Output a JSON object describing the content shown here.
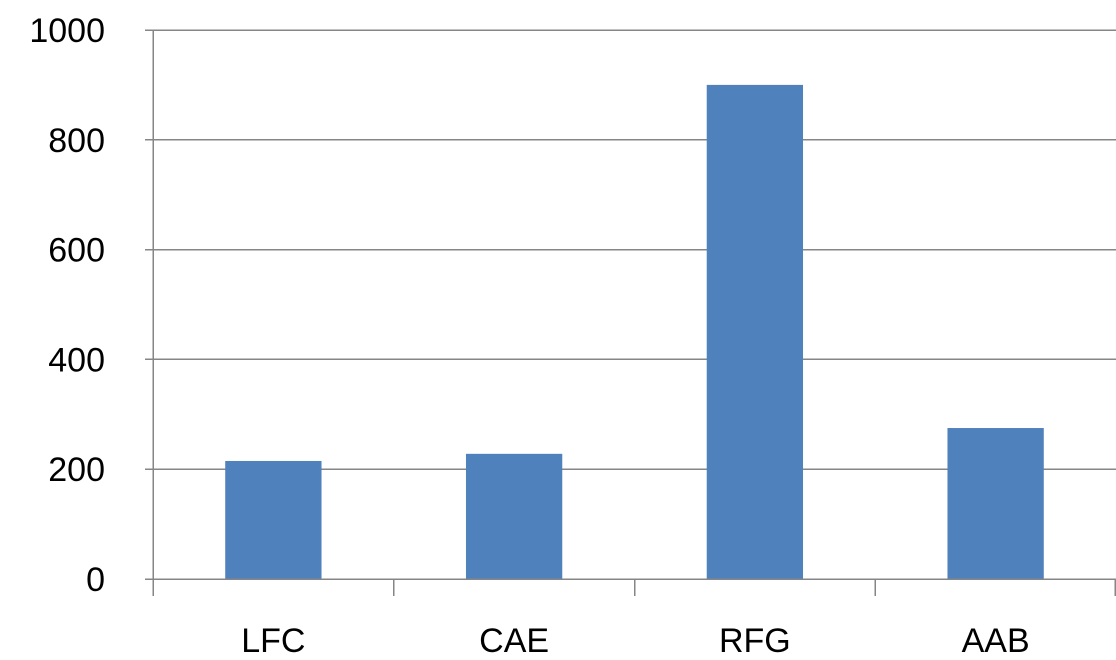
{
  "chart_data": {
    "type": "bar",
    "title": "",
    "xlabel": "",
    "ylabel": "",
    "categories": [
      "LFC",
      "CAE",
      "RFG",
      "AAB"
    ],
    "values": [
      215,
      228,
      900,
      275
    ],
    "ylim": [
      0,
      1000
    ],
    "yticks": [
      0,
      200,
      400,
      600,
      800,
      1000
    ],
    "grid": true,
    "legend": "none",
    "bar_color": "#4F81BD",
    "grid_color": "#868686"
  }
}
